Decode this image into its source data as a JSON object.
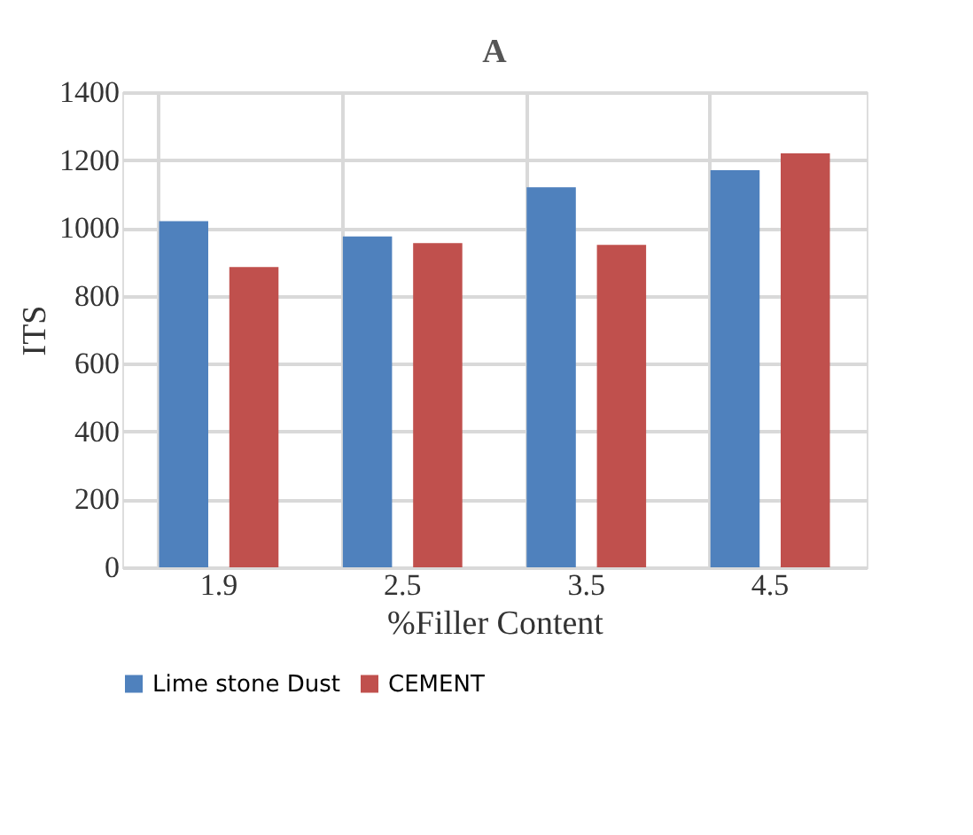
{
  "chart_data": {
    "type": "bar",
    "title": "A",
    "xlabel": "%Filler Content",
    "ylabel": "ITS",
    "categories": [
      "1.9",
      "2.5",
      "3.5",
      "4.5"
    ],
    "series": [
      {
        "name": "Lime stone Dust",
        "color": "#4f81bd",
        "values": [
          1020,
          975,
          1120,
          1170
        ]
      },
      {
        "name": "CEMENT",
        "color": "#c0504d",
        "values": [
          885,
          955,
          950,
          1220
        ]
      }
    ],
    "ylim": [
      0,
      1400
    ],
    "yticks": [
      0,
      200,
      400,
      600,
      800,
      1000,
      1200,
      1400
    ],
    "grid": true,
    "legend": "bottom"
  }
}
